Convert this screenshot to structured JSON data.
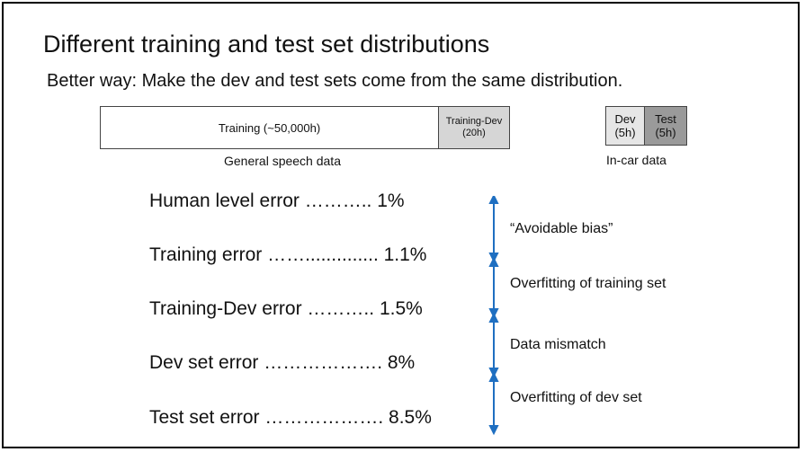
{
  "slide": {
    "title": "Different training and test set distributions",
    "subtitle": "Better way: Make the dev and test sets come from the same distribution."
  },
  "data_bar": {
    "training": "Training (~50,000h)",
    "training_dev_line1": "Training-Dev",
    "training_dev_line2": "(20h)",
    "general_caption": "General speech data",
    "dev_line1": "Dev",
    "dev_line2": "(5h)",
    "test_line1": "Test",
    "test_line2": "(5h)",
    "incar_caption": "In-car data"
  },
  "errors": [
    {
      "label": "Human level error ……….. 1%"
    },
    {
      "label": "Training error …….............. 1.1%"
    },
    {
      "label": "Training-Dev error ……….. 1.5%"
    },
    {
      "label": "Dev set error ………………. 8%"
    },
    {
      "label": "Test set error ………………. 8.5%"
    }
  ],
  "gaps": [
    {
      "label": "“Avoidable bias”"
    },
    {
      "label": "Overfitting of training set"
    },
    {
      "label": "Data mismatch"
    },
    {
      "label": "Overfitting of dev set"
    }
  ],
  "colors": {
    "arrow": "#1f6fc1",
    "training_dev_fill": "#d6d6d6",
    "test_fill": "#9a9a9a"
  }
}
